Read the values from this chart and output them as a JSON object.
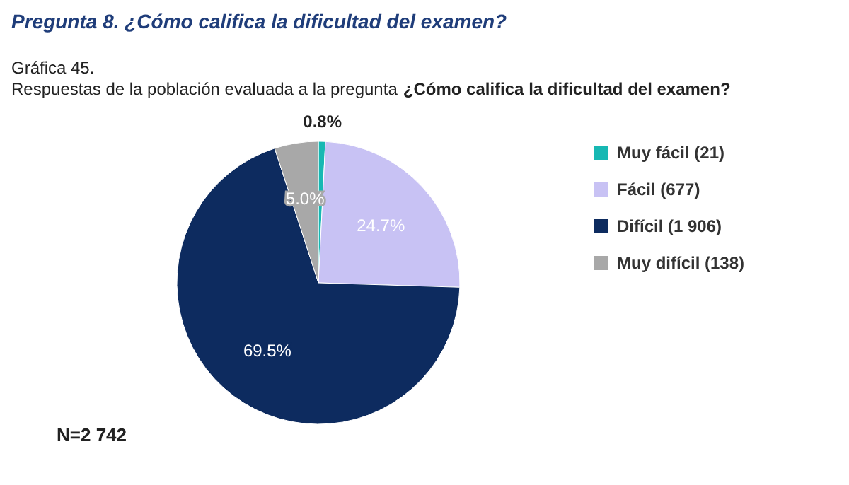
{
  "chart_data": {
    "type": "pie",
    "title": "Pregunta 8. ¿Cómo califica la dificultad del examen?",
    "subtitle": "Gráfica 45.",
    "annotations": [
      "Respuestas de la población evaluada a la pregunta",
      "¿Cómo califica la dificultad del examen?",
      "N=2 742"
    ],
    "categories": [
      "Muy fácil (21)",
      "Fácil (677)",
      "Difícil (1 906)",
      "Muy difícil (138)"
    ],
    "values": [
      0.8,
      24.7,
      69.5,
      5.0
    ],
    "value_labels": [
      "0.8%",
      "24.7%",
      "69.5%",
      "5.0%"
    ],
    "colors": [
      "#17b8b3",
      "#c8c2f4",
      "#0d2b5f",
      "#a8a8a8"
    ],
    "legend": "right"
  }
}
